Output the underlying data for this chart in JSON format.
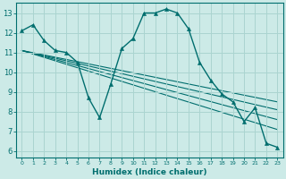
{
  "title": "",
  "xlabel": "Humidex (Indice chaleur)",
  "ylabel": "",
  "bg_color": "#cceae7",
  "grid_color": "#aad4d0",
  "line_color": "#006e6e",
  "xlim": [
    -0.5,
    23.5
  ],
  "ylim": [
    5.7,
    13.5
  ],
  "yticks": [
    6,
    7,
    8,
    9,
    10,
    11,
    12,
    13
  ],
  "xticks": [
    0,
    1,
    2,
    3,
    4,
    5,
    6,
    7,
    8,
    9,
    10,
    11,
    12,
    13,
    14,
    15,
    16,
    17,
    18,
    19,
    20,
    21,
    22,
    23
  ],
  "curve1_x": [
    0,
    1,
    2,
    3,
    4,
    5,
    6,
    7,
    8,
    9,
    10,
    11,
    12,
    13,
    14,
    15,
    16,
    17,
    18,
    19,
    20,
    21,
    22,
    23
  ],
  "curve1_y": [
    12.1,
    12.4,
    11.6,
    11.1,
    11.0,
    10.5,
    8.7,
    7.7,
    9.4,
    11.2,
    11.7,
    13.0,
    13.0,
    13.2,
    13.0,
    12.2,
    10.5,
    9.6,
    8.9,
    8.5,
    7.5,
    8.2,
    6.4,
    6.2
  ],
  "line2_x": [
    0,
    23
  ],
  "line2_y": [
    11.1,
    8.5
  ],
  "line3_x": [
    0,
    23
  ],
  "line3_y": [
    11.1,
    8.1
  ],
  "line4_x": [
    0,
    23
  ],
  "line4_y": [
    11.1,
    7.6
  ],
  "line5_x": [
    0,
    23
  ],
  "line5_y": [
    11.1,
    7.1
  ],
  "xlabel_fontsize": 6.5,
  "tick_fontsize_x": 4.5,
  "tick_fontsize_y": 6.0
}
